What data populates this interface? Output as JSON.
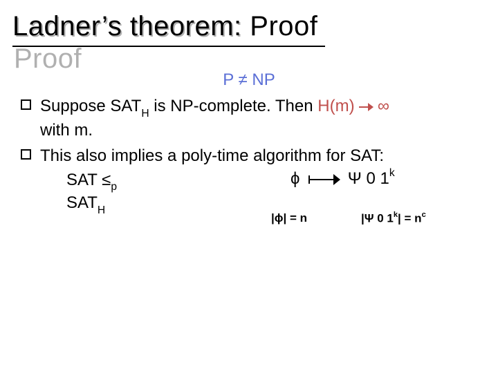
{
  "title": "Ladner’s theorem:  Proof",
  "centerLine": {
    "left": "P ",
    "notEq": "≠ ",
    "right": "NP"
  },
  "bullet1": {
    "pre": "Suppose ",
    "sath": "SAT",
    "sathSub": "H",
    "mid": " is NP-complete.  Then ",
    "hm": "H(m)",
    "arrowInf": "∞",
    "post": "with m.",
    "arrowColor": "#c0504d",
    "textColor": "#000000"
  },
  "bullet2": {
    "text": "This also implies a poly-time algorithm for SAT:"
  },
  "reduction": {
    "line1a": "SAT ",
    "leq": "≤",
    "leqSub": "p",
    "line2": "SAT",
    "line2Sub": "H"
  },
  "mapsto": {
    "phi": "ϕ",
    "psi": "Ψ 0 1",
    "kSup": "k"
  },
  "sizes": {
    "left": {
      "open": "|",
      "phi": "ϕ",
      "rest": "| = n"
    },
    "right": {
      "open": "|",
      "psi": "Ψ 0 1",
      "k": "k",
      "mid": "| = n",
      "c": "c"
    }
  },
  "style": {
    "blue": "#5b6fd6",
    "red": "#c0504d",
    "titleFont": 40,
    "bodyFont": 24,
    "smallFont": 17,
    "underlineWidth": 452
  }
}
